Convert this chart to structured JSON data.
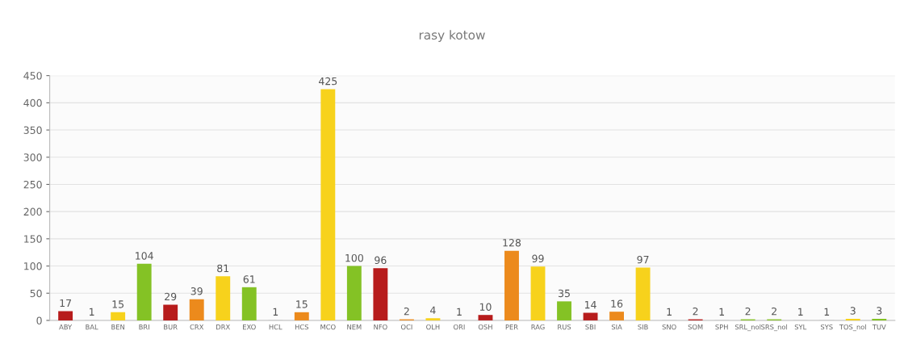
{
  "chart_data": {
    "type": "bar",
    "title": "rasy kotow",
    "categories": [
      "ABY",
      "BAL",
      "BEN",
      "BRI",
      "BUR",
      "CRX",
      "DRX",
      "EXO",
      "HCL",
      "HCS",
      "MCO",
      "NEM",
      "NFO",
      "OCI",
      "OLH",
      "ORI",
      "OSH",
      "PER",
      "RAG",
      "RUS",
      "SBI",
      "SIA",
      "SIB",
      "SNO",
      "SOM",
      "SPH",
      "SRL_nol",
      "SRS_nol",
      "SYL",
      "SYS",
      "TOS_nol",
      "TUV"
    ],
    "values": [
      17,
      1,
      15,
      104,
      29,
      39,
      81,
      61,
      1,
      15,
      425,
      100,
      96,
      2,
      4,
      1,
      10,
      128,
      99,
      35,
      14,
      16,
      97,
      1,
      2,
      1,
      2,
      2,
      1,
      1,
      3,
      3
    ],
    "colors": [
      "#b71c1c",
      "#cccccc",
      "#f7d21c",
      "#84c225",
      "#b71c1c",
      "#ec8a1c",
      "#f7d21c",
      "#84c225",
      "#cccccc",
      "#ec8a1c",
      "#f7d21c",
      "#84c225",
      "#b71c1c",
      "#ec8a1c",
      "#f7d21c",
      "#cccccc",
      "#b71c1c",
      "#ec8a1c",
      "#f7d21c",
      "#84c225",
      "#b71c1c",
      "#ec8a1c",
      "#f7d21c",
      "#cccccc",
      "#b71c1c",
      "#cccccc",
      "#84c225",
      "#84c225",
      "#cccccc",
      "#cccccc",
      "#f7d21c",
      "#84c225"
    ],
    "ylim": [
      0,
      450
    ],
    "yticks": [
      0,
      50,
      100,
      150,
      200,
      250,
      300,
      350,
      400,
      450
    ],
    "grid": "y",
    "data_labels": true
  }
}
